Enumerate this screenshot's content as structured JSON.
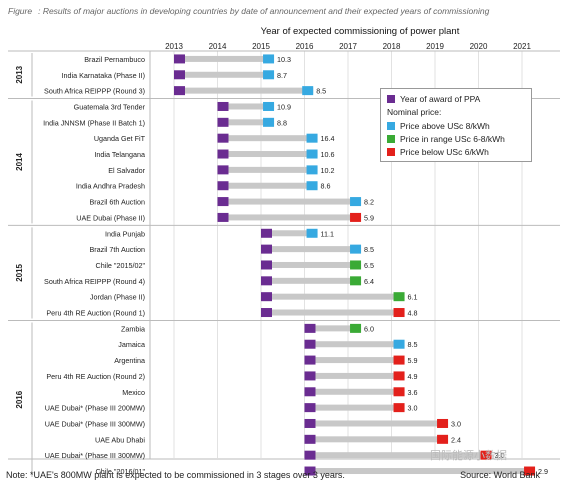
{
  "caption": {
    "figure_label": "Figure",
    "text": ": Results of major auctions in developing countries by date of announcement and their expected years of commissioning"
  },
  "legend": {
    "award": "Year of award of PPA",
    "nominal": "Nominal price:",
    "above": "Price above USc 8/kWh",
    "range": "Price in range USc 6-8/kWh",
    "below": "Price below USc 6/kWh"
  },
  "footer": {
    "note": "Note: *UAE's 800MW plant is expected to be commissioned in 3 stages over 3 years.",
    "source": "Source: World Bank",
    "watermark": "国际能源小数据"
  },
  "colors": {
    "award": "#6a2c91",
    "bar": "#c8c8c8",
    "above": "#36a9e1",
    "range": "#3aaa35",
    "below": "#e3201b"
  },
  "chart_data": {
    "type": "bar",
    "title": "Year of expected commissioning of power plant",
    "x_ticks": [
      "2013",
      "2014",
      "2015",
      "2016",
      "2017",
      "2018",
      "2019",
      "2020",
      "2021"
    ],
    "xlim": [
      2013,
      2021
    ],
    "groups": [
      {
        "name": "2013",
        "rows": [
          {
            "label": "Brazil Pernambuco",
            "award": 2013,
            "commission": 2015.3,
            "price": "10.3",
            "category": "above"
          },
          {
            "label": "India Karnataka (Phase II)",
            "award": 2013,
            "commission": 2015.3,
            "price": "8.7",
            "category": "above"
          },
          {
            "label": "South Africa REIPPP (Round 3)",
            "award": 2013,
            "commission": 2016.2,
            "price": "8.5",
            "category": "above"
          }
        ]
      },
      {
        "name": "2014",
        "rows": [
          {
            "label": "Guatemala 3rd Tender",
            "award": 2014,
            "commission": 2015.3,
            "price": "10.9",
            "category": "above"
          },
          {
            "label": "India JNNSM (Phase II Batch 1)",
            "award": 2014,
            "commission": 2015.3,
            "price": "8.8",
            "category": "above"
          },
          {
            "label": "Uganda Get FiT",
            "award": 2014,
            "commission": 2016.3,
            "price": "16.4",
            "category": "above"
          },
          {
            "label": "India Telangana",
            "award": 2014,
            "commission": 2016.3,
            "price": "10.6",
            "category": "above"
          },
          {
            "label": "El Salvador",
            "award": 2014,
            "commission": 2016.3,
            "price": "10.2",
            "category": "above"
          },
          {
            "label": "India Andhra Pradesh",
            "award": 2014,
            "commission": 2016.3,
            "price": "8.6",
            "category": "above"
          },
          {
            "label": "Brazil 6th Auction",
            "award": 2014,
            "commission": 2017.3,
            "price": "8.2",
            "category": "above"
          },
          {
            "label": "UAE Dubai (Phase II)",
            "award": 2014,
            "commission": 2017.3,
            "price": "5.9",
            "category": "below"
          }
        ]
      },
      {
        "name": "2015",
        "rows": [
          {
            "label": "India Punjab",
            "award": 2015,
            "commission": 2016.3,
            "price": "11.1",
            "category": "above"
          },
          {
            "label": "Brazil 7th Auction",
            "award": 2015,
            "commission": 2017.3,
            "price": "8.5",
            "category": "above"
          },
          {
            "label": "Chile \"2015/02\"",
            "award": 2015,
            "commission": 2017.3,
            "price": "6.5",
            "category": "range"
          },
          {
            "label": "South Africa REIPPP (Round 4)",
            "award": 2015,
            "commission": 2017.3,
            "price": "6.4",
            "category": "range"
          },
          {
            "label": "Jordan (Phase II)",
            "award": 2015,
            "commission": 2018.3,
            "price": "6.1",
            "category": "range"
          },
          {
            "label": "Peru 4th RE Auction (Round 1)",
            "award": 2015,
            "commission": 2018.3,
            "price": "4.8",
            "category": "below"
          }
        ]
      },
      {
        "name": "2016",
        "rows": [
          {
            "label": "Zambia",
            "award": 2016,
            "commission": 2017.3,
            "price": "6.0",
            "category": "range"
          },
          {
            "label": "Jamaica",
            "award": 2016,
            "commission": 2018.3,
            "price": "8.5",
            "category": "above"
          },
          {
            "label": "Argentina",
            "award": 2016,
            "commission": 2018.3,
            "price": "5.9",
            "category": "below"
          },
          {
            "label": "Peru 4th RE Auction (Round 2)",
            "award": 2016,
            "commission": 2018.3,
            "price": "4.9",
            "category": "below"
          },
          {
            "label": "Mexico",
            "award": 2016,
            "commission": 2018.3,
            "price": "3.6",
            "category": "below"
          },
          {
            "label": "UAE Dubai* (Phase III 200MW)",
            "award": 2016,
            "commission": 2018.3,
            "price": "3.0",
            "category": "below"
          },
          {
            "label": "UAE Dubai* (Phase III 300MW)",
            "award": 2016,
            "commission": 2019.3,
            "price": "3.0",
            "category": "below"
          },
          {
            "label": "UAE Abu Dhabi",
            "award": 2016,
            "commission": 2019.3,
            "price": "2.4",
            "category": "below"
          },
          {
            "label": "UAE Dubai* (Phase III 300MW)",
            "award": 2016,
            "commission": 2020.3,
            "price": "3.0",
            "category": "below"
          },
          {
            "label": "Chile \"2016/01\"",
            "award": 2016,
            "commission": 2021.3,
            "price": "2.9",
            "category": "below"
          }
        ]
      }
    ]
  }
}
